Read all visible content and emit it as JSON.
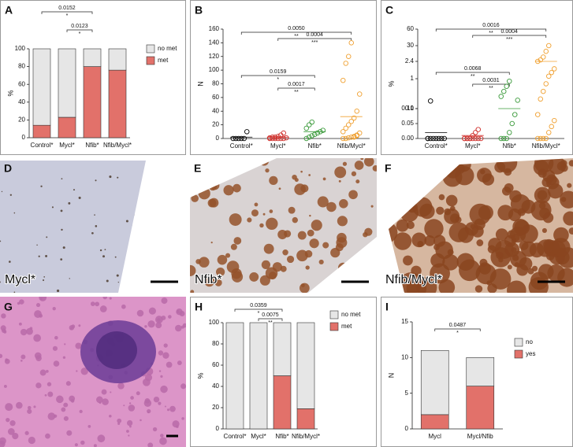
{
  "chart_data": [
    {
      "type": "stacked_bar",
      "label": "A",
      "ylabel": "%",
      "categories": [
        "Control*",
        "Mycl*",
        "Nfib*",
        "Nfib/Mycl*"
      ],
      "series": [
        {
          "name": "met",
          "color": "#e2716a",
          "values": [
            14,
            23,
            80,
            76
          ]
        },
        {
          "name": "no met",
          "color": "#e6e6e6",
          "values": [
            86,
            77,
            20,
            24
          ]
        }
      ],
      "ylim": [
        0,
        100
      ],
      "yticks": [
        0,
        20,
        40,
        60,
        80,
        100
      ],
      "legend": "right",
      "comparisons": [
        {
          "p": "0.0152",
          "stars": "*",
          "from": "Control*",
          "to": "Nfib*"
        },
        {
          "p": "0.0123",
          "stars": "*",
          "from": "Mycl*",
          "to": "Nfib*"
        }
      ]
    },
    {
      "type": "dot",
      "label": "B",
      "ylabel": "N",
      "categories": [
        "Control*",
        "Mycl*",
        "Nfib*",
        "Nfib/Mycl*"
      ],
      "colors": [
        "#000000",
        "#d0312d",
        "#3a9a3a",
        "#f0a030"
      ],
      "points": [
        [
          0,
          0,
          0,
          0,
          0,
          10
        ],
        [
          0,
          0,
          0,
          0,
          0,
          0,
          1,
          1,
          2,
          2,
          3,
          5,
          8
        ],
        [
          0,
          2,
          4,
          6,
          8,
          10,
          12,
          15,
          20,
          24
        ],
        [
          0,
          0,
          1,
          2,
          3,
          5,
          8,
          10,
          15,
          20,
          25,
          30,
          40,
          65,
          85,
          110,
          120,
          140,
          2,
          4
        ]
      ],
      "means": [
        2,
        2,
        10,
        32
      ],
      "ylim": [
        0,
        160
      ],
      "yticks": [
        0,
        20,
        40,
        60,
        80,
        100,
        120,
        140,
        160
      ],
      "comparisons": [
        {
          "p": "0.0050",
          "stars": "**",
          "from": "Control*",
          "to": "Nfib/Mycl*"
        },
        {
          "p": "0.0004",
          "stars": "***",
          "from": "Mycl*",
          "to": "Nfib/Mycl*"
        },
        {
          "p": "0.0159",
          "stars": "*",
          "from": "Control*",
          "to": "Nfib*"
        },
        {
          "p": "0.0017",
          "stars": "**",
          "from": "Mycl*",
          "to": "Nfib*"
        }
      ]
    },
    {
      "type": "dot",
      "label": "C",
      "ylabel": "%",
      "broken_axis": true,
      "categories": [
        "Control*",
        "Mycl*",
        "Nfib*",
        "Nfib/Mycl*"
      ],
      "colors": [
        "#000000",
        "#d0312d",
        "#3a9a3a",
        "#f0a030"
      ],
      "points": [
        [
          0,
          0,
          0,
          0,
          0,
          0,
          0,
          0,
          0.12
        ],
        [
          0,
          0,
          0,
          0,
          0,
          0,
          0,
          0,
          0,
          0,
          0.01,
          0.02,
          0.03
        ],
        [
          0,
          0,
          0,
          0.02,
          0.05,
          0.08,
          0.15,
          0.3,
          0.5,
          0.7,
          0.9
        ],
        [
          0,
          0,
          0,
          0,
          0.02,
          0.04,
          0.06,
          0.08,
          0.2,
          0.5,
          0.8,
          1.2,
          1.5,
          1.8,
          2.4,
          5,
          10,
          20,
          30
        ]
      ],
      "means": [
        0.02,
        0.01,
        0.1,
        2.4
      ],
      "ylim": [
        0,
        60
      ],
      "yticks": [
        {
          "value": 0,
          "label": "0.00"
        },
        0.05,
        {
          "value": 0.1,
          "label": "0.10"
        },
        0.1,
        1,
        2.4,
        30,
        60
      ],
      "comparisons": [
        {
          "p": "0.0016",
          "stars": "**",
          "from": "Control*",
          "to": "Nfib/Mycl*"
        },
        {
          "p": "0.0004",
          "stars": "***",
          "from": "Mycl*",
          "to": "Nfib/Mycl*"
        },
        {
          "p": "0.0068",
          "stars": "**",
          "from": "Control*",
          "to": "Nfib*"
        },
        {
          "p": "0.0031",
          "stars": "**",
          "from": "Mycl*",
          "to": "Nfib*"
        }
      ]
    },
    {
      "type": "stacked_bar",
      "label": "H",
      "ylabel": "%",
      "categories": [
        "Control*",
        "Mycl*",
        "Nfib*",
        "Nfib/Mycl*"
      ],
      "series": [
        {
          "name": "met",
          "color": "#e2716a",
          "values": [
            0,
            0,
            50,
            19
          ]
        },
        {
          "name": "no met",
          "color": "#e6e6e6",
          "values": [
            100,
            100,
            50,
            81
          ]
        }
      ],
      "ylim": [
        0,
        100
      ],
      "yticks": [
        0,
        20,
        40,
        60,
        80,
        100
      ],
      "legend": "right",
      "comparisons": [
        {
          "p": "0.0359",
          "stars": "*",
          "from": "Control*",
          "to": "Nfib*"
        },
        {
          "p": "0.0075",
          "stars": "**",
          "from": "Mycl*",
          "to": "Nfib*"
        }
      ]
    },
    {
      "type": "stacked_bar",
      "label": "I",
      "ylabel": "N",
      "categories": [
        "Mycl",
        "Mycl/Nfib"
      ],
      "series": [
        {
          "name": "yes",
          "color": "#e2716a",
          "values": [
            2,
            6
          ]
        },
        {
          "name": "no",
          "color": "#e6e6e6",
          "values": [
            9,
            4
          ]
        }
      ],
      "ylim": [
        0,
        15
      ],
      "yticks": [
        0,
        5,
        10,
        15
      ],
      "legend": "right",
      "comparisons": [
        {
          "p": "0.0487",
          "stars": "*",
          "from": "Mycl",
          "to": "Mycl/Nfib"
        }
      ]
    }
  ],
  "images": [
    {
      "label": "D",
      "caption": "Mycl*"
    },
    {
      "label": "E",
      "caption": "Nfib*"
    },
    {
      "label": "F",
      "caption": "Nfib/Mycl*"
    },
    {
      "label": "G"
    }
  ]
}
